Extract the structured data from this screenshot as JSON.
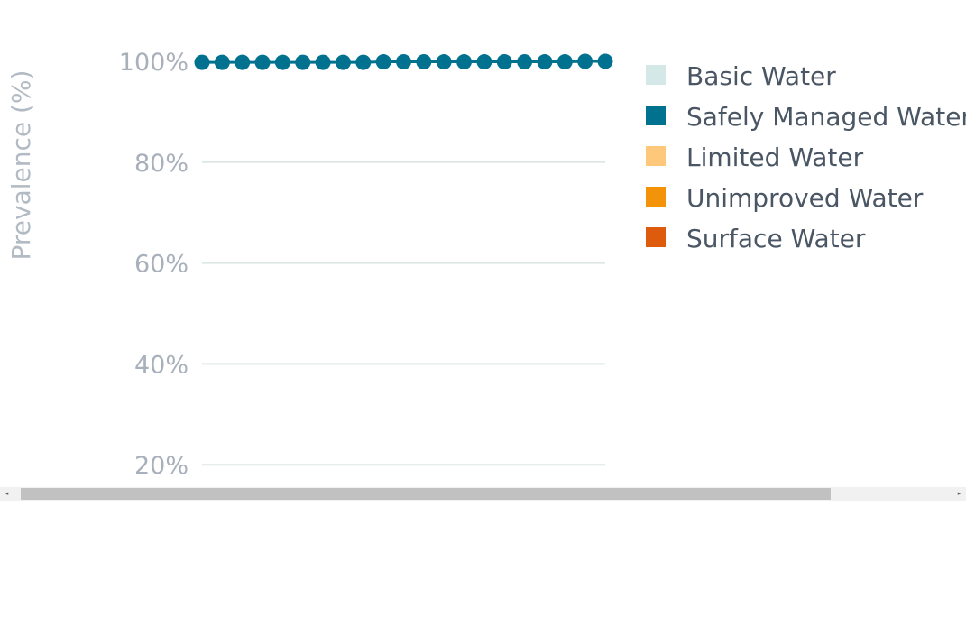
{
  "chart_data": {
    "type": "line",
    "title": "",
    "ylabel": "Prevalence (%)",
    "xlabel": "",
    "ylim": [
      0,
      100
    ],
    "y_ticks": [
      {
        "value": 20,
        "label": "20%"
      },
      {
        "value": 40,
        "label": "40%"
      },
      {
        "value": 60,
        "label": "60%"
      },
      {
        "value": 80,
        "label": "80%"
      },
      {
        "value": 100,
        "label": "100%"
      }
    ],
    "grid": true,
    "legend_position": "right",
    "legend": [
      {
        "label": "Basic Water",
        "color": "#d3e8e7"
      },
      {
        "label": "Safely Managed Water",
        "color": "#00728f"
      },
      {
        "label": "Limited Water",
        "color": "#fdc87a"
      },
      {
        "label": "Unimproved Water",
        "color": "#f3930a"
      },
      {
        "label": "Surface Water",
        "color": "#de5a0c"
      }
    ],
    "series": [
      {
        "color": "#00728f",
        "values": [
          99.8,
          99.8,
          99.8,
          99.8,
          99.8,
          99.8,
          99.8,
          99.8,
          99.8,
          99.9,
          99.9,
          99.9,
          99.9,
          99.9,
          99.9,
          99.9,
          99.9,
          99.9,
          99.9,
          100,
          100
        ]
      }
    ]
  },
  "scrollbar": {
    "left_arrow": "◂",
    "right_arrow": "▸"
  }
}
